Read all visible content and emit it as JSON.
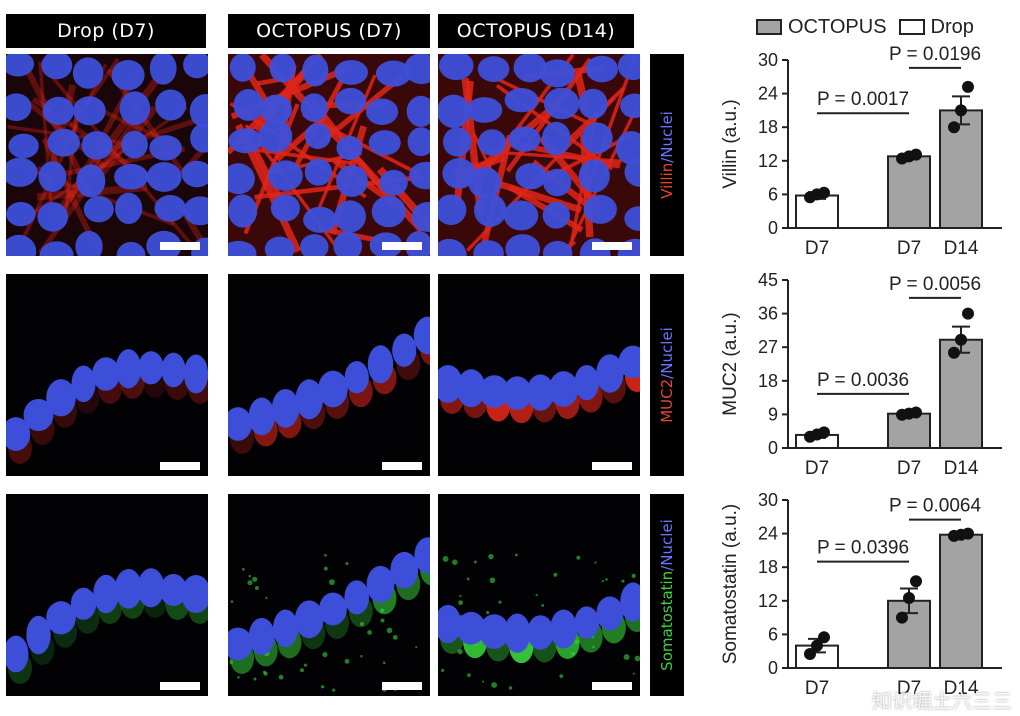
{
  "figure": {
    "columns": [
      "Drop (D7)",
      "OCTOPUS (D7)",
      "OCTOPUS (D14)"
    ],
    "rows": [
      {
        "stain": "Villin",
        "sep": "/",
        "counter": "Nuclei",
        "stain_color": "#e84432"
      },
      {
        "stain": "MUC2",
        "sep": "/",
        "counter": "Nuclei",
        "stain_color": "#e84432"
      },
      {
        "stain": "Somatostatin",
        "sep": "/",
        "counter": "Nuclei",
        "stain_color": "#3ed43e"
      }
    ],
    "legend": {
      "octopus": "OCTOPUS",
      "drop": "Drop"
    },
    "watermark": "知识堀土六三三"
  },
  "colors": {
    "nuclei": "#3d4fd9",
    "red_stain": "#e0261a",
    "green_stain": "#38d43a",
    "bar_gray": "#a3a3a3",
    "bar_white": "#ffffff"
  },
  "chart_data": [
    {
      "type": "bar",
      "ylabel": "Villin (a.u.)",
      "categories": [
        "D7",
        "D7",
        "D14"
      ],
      "groups": [
        "Drop",
        "OCTOPUS",
        "OCTOPUS"
      ],
      "values": [
        5.8,
        12.8,
        21
      ],
      "errors": [
        0.6,
        0.4,
        2.5
      ],
      "points": [
        [
          5.5,
          6.0,
          6.3
        ],
        [
          12.4,
          12.8,
          13.1
        ],
        [
          18.0,
          21.0,
          25.2
        ]
      ],
      "ylim": [
        0,
        30
      ],
      "yticks": [
        0,
        6,
        12,
        18,
        24,
        30
      ],
      "annotations": [
        {
          "text": "P = 0.0017",
          "from": 0,
          "to": 1,
          "y": 20.5
        },
        {
          "text": "P = 0.0196",
          "from": 1,
          "to": 2,
          "y": 28.6
        }
      ]
    },
    {
      "type": "bar",
      "ylabel": "MUC2 (a.u.)",
      "categories": [
        "D7",
        "D7",
        "D14"
      ],
      "groups": [
        "Drop",
        "OCTOPUS",
        "OCTOPUS"
      ],
      "values": [
        3.5,
        9.2,
        29
      ],
      "errors": [
        0.8,
        0.4,
        3.5
      ],
      "points": [
        [
          3.0,
          3.6,
          4.2
        ],
        [
          8.9,
          9.2,
          9.5
        ],
        [
          25.5,
          29.0,
          36.0
        ]
      ],
      "ylim": [
        0,
        45
      ],
      "yticks": [
        0,
        9,
        18,
        27,
        36,
        45
      ],
      "annotations": [
        {
          "text": "P = 0.0036",
          "from": 0,
          "to": 1,
          "y": 14.5
        },
        {
          "text": "P = 0.0056",
          "from": 1,
          "to": 2,
          "y": 40.2
        }
      ]
    },
    {
      "type": "bar",
      "ylabel": "Somatostatin (a.u.)",
      "categories": [
        "D7",
        "D7",
        "D14"
      ],
      "groups": [
        "Drop",
        "OCTOPUS",
        "OCTOPUS"
      ],
      "values": [
        4.0,
        12.0,
        23.8
      ],
      "errors": [
        1.2,
        2.2,
        0.3
      ],
      "points": [
        [
          2.5,
          4.0,
          5.5
        ],
        [
          9.0,
          12.5,
          15.5
        ],
        [
          23.6,
          23.8,
          24.0
        ]
      ],
      "ylim": [
        0,
        30
      ],
      "yticks": [
        0,
        6,
        12,
        18,
        24,
        30
      ],
      "annotations": [
        {
          "text": "P = 0.0396",
          "from": 0,
          "to": 1,
          "y": 19.0
        },
        {
          "text": "P = 0.0064",
          "from": 1,
          "to": 2,
          "y": 26.5
        }
      ]
    }
  ]
}
